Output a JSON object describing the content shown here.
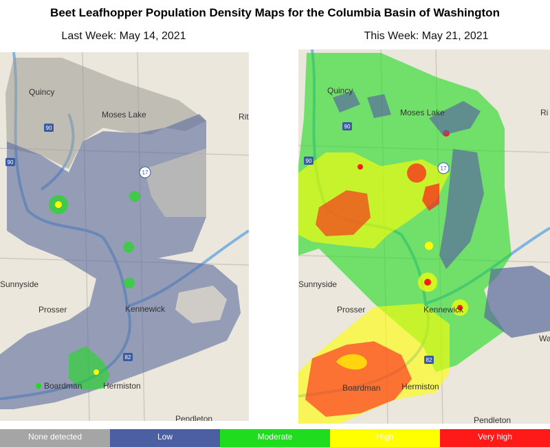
{
  "title": "Beet Leafhopper Population Density Maps for the Columbia Basin of Washington",
  "maps": [
    {
      "caption": "Last Week:  May 14, 2021",
      "places": [
        "Quincy",
        "Moses Lake",
        "Rit",
        "Sunnyside",
        "Prosser",
        "Kennewick",
        "Boardman",
        "Hermiston",
        "Pendleton"
      ],
      "highways": [
        "90",
        "90",
        "17",
        "82"
      ]
    },
    {
      "caption": "This Week:  May 21, 2021",
      "places": [
        "Quincy",
        "Moses Lake",
        "Ri",
        "Sunnyside",
        "Prosser",
        "Kennewick",
        "Wa",
        "Boardman",
        "Hermiston",
        "Pendleton"
      ],
      "highways": [
        "90",
        "90",
        "17",
        "82"
      ]
    }
  ],
  "legend": [
    {
      "label": "None detected",
      "color": "#a5a5a5"
    },
    {
      "label": "Low",
      "color": "#4c5fa3"
    },
    {
      "label": "Moderate",
      "color": "#1fdc1f"
    },
    {
      "label": "High",
      "color": "#ffff00"
    },
    {
      "label": "Very high",
      "color": "#ff1a1a"
    }
  ]
}
